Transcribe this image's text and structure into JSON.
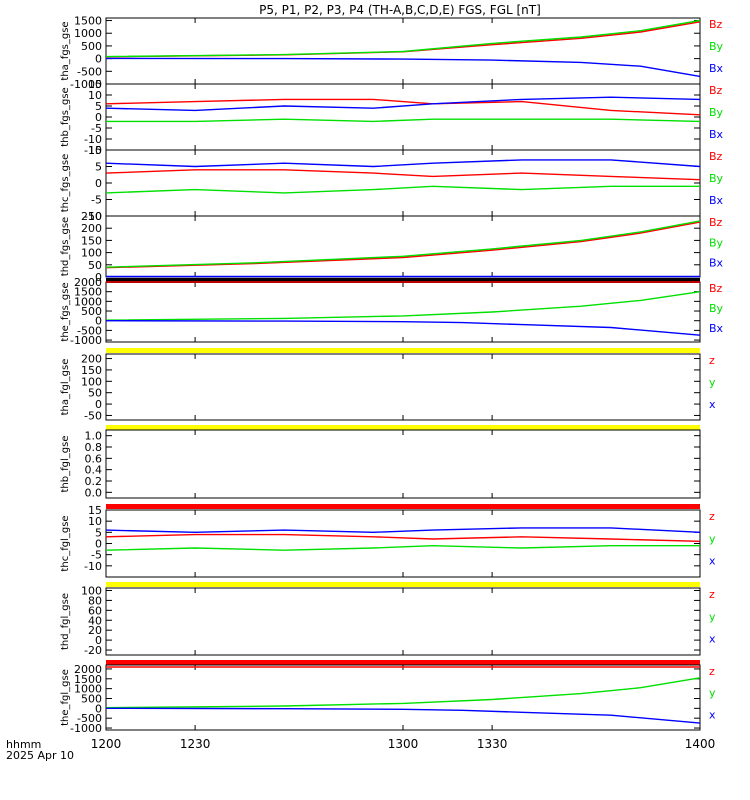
{
  "title": "P5, P1, P2, P3, P4 (TH-A,B,C,D,E) FGS, FGL [nT]",
  "colors": {
    "x": "#0000ff",
    "y": "#00e000",
    "z": "#ff0000",
    "quality_yellow": "#ffff00",
    "quality_red": "#ff0000",
    "quality_black": "#000000"
  },
  "footer": {
    "label_line1": "hhmm",
    "label_line2": "2025 Apr 10"
  },
  "time_axis": {
    "ticks": [
      1200,
      1230,
      1300,
      1330,
      1400
    ],
    "tick_labels": [
      "1200",
      "1230",
      "1300",
      "1330",
      "1400"
    ],
    "range": [
      1200,
      1400
    ]
  },
  "chart_data": [
    {
      "type": "line",
      "ylabel": "tha_fgs_gse",
      "ylim": [
        -1000,
        1600
      ],
      "tick_values": [
        -1000,
        -500,
        0,
        500,
        1000,
        1500
      ],
      "tick_labels": [
        "-1000",
        "-500",
        "0",
        "500",
        "1000",
        "1500"
      ],
      "legend": [
        "Bz",
        "By",
        "Bx"
      ],
      "series": [
        {
          "name": "Bz",
          "color": "#ff0000",
          "x": [
            1200,
            1260,
            1300,
            1330,
            1360,
            1380,
            1400
          ],
          "y": [
            70,
            150,
            270,
            550,
            800,
            1050,
            1450
          ]
        },
        {
          "name": "By",
          "color": "#00e000",
          "x": [
            1200,
            1260,
            1300,
            1330,
            1360,
            1380,
            1400
          ],
          "y": [
            80,
            160,
            280,
            600,
            850,
            1100,
            1500
          ]
        },
        {
          "name": "Bx",
          "color": "#0000ff",
          "x": [
            1200,
            1260,
            1300,
            1330,
            1360,
            1380,
            1400
          ],
          "y": [
            10,
            0,
            -20,
            -60,
            -150,
            -300,
            -700
          ]
        }
      ]
    },
    {
      "type": "line",
      "ylabel": "thb_fgs_gse",
      "ylim": [
        -15,
        15
      ],
      "tick_values": [
        -15,
        -10,
        -5,
        0,
        5,
        10,
        15
      ],
      "tick_labels": [
        "-15",
        "-10",
        "-5",
        "0",
        "5",
        "10",
        "15"
      ],
      "legend": [
        "Bz",
        "By",
        "Bx"
      ],
      "series": [
        {
          "name": "Bz",
          "color": "#ff0000",
          "x": [
            1200,
            1230,
            1260,
            1290,
            1310,
            1340,
            1370,
            1400
          ],
          "y": [
            6,
            7,
            8,
            8,
            6,
            7,
            3,
            1
          ]
        },
        {
          "name": "By",
          "color": "#00e000",
          "x": [
            1200,
            1230,
            1260,
            1290,
            1310,
            1340,
            1370,
            1400
          ],
          "y": [
            -2,
            -2,
            -1,
            -2,
            -1,
            -1,
            -1,
            -2
          ]
        },
        {
          "name": "Bx",
          "color": "#0000ff",
          "x": [
            1200,
            1230,
            1260,
            1290,
            1310,
            1340,
            1370,
            1400
          ],
          "y": [
            4,
            3,
            5,
            4,
            6,
            8,
            9,
            8
          ]
        }
      ]
    },
    {
      "type": "line",
      "ylabel": "thc_fgs_gse",
      "ylim": [
        -10,
        10
      ],
      "tick_values": [
        -10,
        -5,
        0,
        5,
        10
      ],
      "tick_labels": [
        "-10",
        "-5",
        "0",
        "5",
        "10"
      ],
      "legend": [
        "Bz",
        "By",
        "Bx"
      ],
      "series": [
        {
          "name": "Bz",
          "color": "#ff0000",
          "x": [
            1200,
            1230,
            1260,
            1290,
            1310,
            1340,
            1370,
            1400
          ],
          "y": [
            3,
            4,
            4,
            3,
            2,
            3,
            2,
            1
          ]
        },
        {
          "name": "By",
          "color": "#00e000",
          "x": [
            1200,
            1230,
            1260,
            1290,
            1310,
            1340,
            1370,
            1400
          ],
          "y": [
            -3,
            -2,
            -3,
            -2,
            -1,
            -2,
            -1,
            -1
          ]
        },
        {
          "name": "Bx",
          "color": "#0000ff",
          "x": [
            1200,
            1230,
            1260,
            1290,
            1310,
            1340,
            1370,
            1400
          ],
          "y": [
            6,
            5,
            6,
            5,
            6,
            7,
            7,
            5
          ]
        }
      ]
    },
    {
      "type": "line",
      "ylabel": "thd_fgs_gse",
      "ylim": [
        0,
        250
      ],
      "tick_values": [
        0,
        50,
        100,
        150,
        200,
        250
      ],
      "tick_labels": [
        "0",
        "50",
        "100",
        "150",
        "200",
        "250"
      ],
      "legend": [
        "Bz",
        "By",
        "Bx"
      ],
      "series": [
        {
          "name": "Bz",
          "color": "#ff0000",
          "x": [
            1200,
            1250,
            1300,
            1330,
            1360,
            1380,
            1400
          ],
          "y": [
            38,
            55,
            80,
            110,
            145,
            180,
            225
          ]
        },
        {
          "name": "By",
          "color": "#00e000",
          "x": [
            1200,
            1250,
            1300,
            1330,
            1360,
            1380,
            1400
          ],
          "y": [
            40,
            58,
            85,
            115,
            150,
            185,
            230
          ]
        },
        {
          "name": "Bx",
          "color": "#0000ff",
          "x": [
            1200,
            1250,
            1300,
            1330,
            1360,
            1380,
            1400
          ],
          "y": [
            2,
            2,
            2,
            2,
            2,
            2,
            2
          ]
        }
      ]
    },
    {
      "type": "line",
      "ylabel": "the_fgs_gse",
      "ylim": [
        -1100,
        2000
      ],
      "tick_values": [
        -1000,
        -500,
        0,
        500,
        1000,
        1500,
        2000
      ],
      "tick_labels": [
        "-1000",
        "-500",
        "0",
        "500",
        "1000",
        "1500",
        "2000"
      ],
      "legend": [
        "Bz",
        "By",
        "Bx"
      ],
      "series": [
        {
          "name": "Bz",
          "color": "#ff0000",
          "x": [
            1200,
            1300,
            1400
          ],
          "y": [
            2000,
            2000,
            2000
          ]
        },
        {
          "name": "By",
          "color": "#00e000",
          "x": [
            1200,
            1260,
            1300,
            1330,
            1360,
            1380,
            1400
          ],
          "y": [
            30,
            120,
            250,
            450,
            750,
            1050,
            1500
          ]
        },
        {
          "name": "Bx",
          "color": "#0000ff",
          "x": [
            1200,
            1260,
            1300,
            1320,
            1340,
            1370,
            1400
          ],
          "y": [
            0,
            -20,
            -50,
            -100,
            -200,
            -350,
            -750
          ]
        }
      ]
    },
    {
      "type": "line",
      "ylabel": "tha_fgl_gse",
      "ylim": [
        -70,
        220
      ],
      "tick_values": [
        -50,
        0,
        50,
        100,
        150,
        200
      ],
      "tick_labels": [
        "-50",
        "0",
        "50",
        "100",
        "150",
        "200"
      ],
      "legend": [
        "z",
        "y",
        "x"
      ],
      "quality_color": "#ffff00",
      "series": []
    },
    {
      "type": "line",
      "ylabel": "thb_fgl_gse",
      "ylim": [
        -0.1,
        1.1
      ],
      "tick_values": [
        0.0,
        0.2,
        0.4,
        0.6,
        0.8,
        1.0
      ],
      "tick_labels": [
        "0.0",
        "0.2",
        "0.4",
        "0.6",
        "0.8",
        "1.0"
      ],
      "legend": [],
      "quality_color": "#ffff00",
      "series": []
    },
    {
      "type": "line",
      "ylabel": "thc_fgl_gse",
      "ylim": [
        -15,
        15
      ],
      "tick_values": [
        -10,
        -5,
        0,
        5,
        10,
        15
      ],
      "tick_labels": [
        "-10",
        "-5",
        "0",
        "5",
        "10",
        "15"
      ],
      "legend": [
        "z",
        "y",
        "x"
      ],
      "quality_color": "#ff0000",
      "series": [
        {
          "name": "z",
          "color": "#ff0000",
          "x": [
            1200,
            1230,
            1260,
            1290,
            1310,
            1340,
            1370,
            1400
          ],
          "y": [
            3,
            4,
            4,
            3,
            2,
            3,
            2,
            1
          ]
        },
        {
          "name": "y",
          "color": "#00e000",
          "x": [
            1200,
            1230,
            1260,
            1290,
            1310,
            1340,
            1370,
            1400
          ],
          "y": [
            -3,
            -2,
            -3,
            -2,
            -1,
            -2,
            -1,
            -1
          ]
        },
        {
          "name": "x",
          "color": "#0000ff",
          "x": [
            1200,
            1230,
            1260,
            1290,
            1310,
            1340,
            1370,
            1400
          ],
          "y": [
            6,
            5,
            6,
            5,
            6,
            7,
            7,
            5
          ]
        }
      ]
    },
    {
      "type": "line",
      "ylabel": "thd_fgl_gse",
      "ylim": [
        -30,
        105
      ],
      "tick_values": [
        -20,
        0,
        20,
        40,
        60,
        80,
        100
      ],
      "tick_labels": [
        "-20",
        "0",
        "20",
        "40",
        "60",
        "80",
        "100"
      ],
      "legend": [
        "z",
        "y",
        "x"
      ],
      "quality_color": "#ffff00",
      "series": []
    },
    {
      "type": "line",
      "ylabel": "the_fgl_gse",
      "ylim": [
        -1100,
        2200
      ],
      "tick_values": [
        -1000,
        -500,
        0,
        500,
        1000,
        1500,
        2000
      ],
      "tick_labels": [
        "-1000",
        "-500",
        "0",
        "500",
        "1000",
        "1500",
        "2000"
      ],
      "legend": [
        "z",
        "y",
        "x"
      ],
      "quality_color": "#ff0000",
      "series": [
        {
          "name": "z",
          "color": "#ff0000",
          "x": [
            1200,
            1300,
            1400
          ],
          "y": [
            2100,
            2100,
            2100
          ]
        },
        {
          "name": "y",
          "color": "#00e000",
          "x": [
            1200,
            1260,
            1300,
            1330,
            1360,
            1380,
            1400
          ],
          "y": [
            30,
            120,
            250,
            450,
            750,
            1050,
            1550
          ]
        },
        {
          "name": "x",
          "color": "#0000ff",
          "x": [
            1200,
            1260,
            1300,
            1320,
            1340,
            1370,
            1400
          ],
          "y": [
            0,
            -20,
            -50,
            -100,
            -200,
            -350,
            -750
          ]
        }
      ]
    }
  ]
}
